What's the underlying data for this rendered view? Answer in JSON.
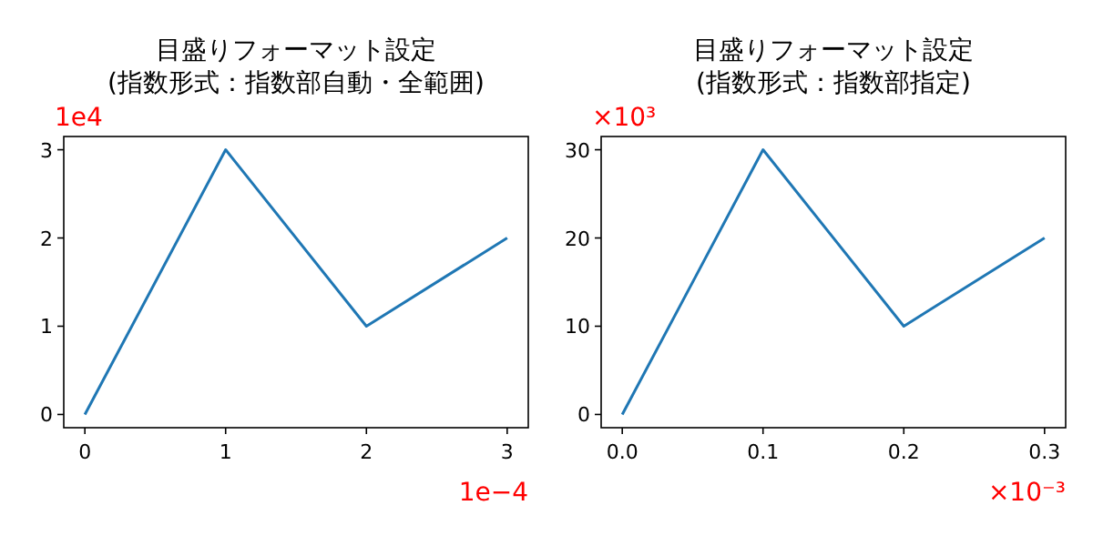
{
  "chart_data": [
    {
      "type": "line",
      "title": "目盛りフォーマット設定\n(指数形式：指数部自動・全範囲)",
      "x": [
        0,
        1,
        2,
        3
      ],
      "series": [
        {
          "color": "#1f77b4",
          "values": [
            0,
            3,
            1,
            2
          ]
        }
      ],
      "xlim": [
        -0.15,
        3.15
      ],
      "ylim": [
        -0.15,
        3.15
      ],
      "xticks": [
        0,
        1,
        2,
        3
      ],
      "yticks": [
        0,
        1,
        2,
        3
      ],
      "annotations": [
        "1e4",
        "1e−4"
      ]
    },
    {
      "type": "line",
      "title": "目盛りフォーマット設定\n(指数形式：指数部指定)",
      "x": [
        0,
        0.1,
        0.2,
        0.3
      ],
      "series": [
        {
          "color": "#1f77b4",
          "values": [
            0,
            30,
            10,
            20
          ]
        }
      ],
      "xlim": [
        -0.015,
        0.315
      ],
      "ylim": [
        -1.5,
        31.5
      ],
      "xticks": [
        {
          "value": 0,
          "label": "0.0"
        },
        {
          "value": 0.1,
          "label": "0.1"
        },
        {
          "value": 0.2,
          "label": "0.2"
        },
        {
          "value": 0.3,
          "label": "0.3"
        }
      ],
      "yticks": [
        0,
        10,
        20,
        30
      ],
      "annotations": [
        "×10³",
        "×10⁻³"
      ]
    }
  ]
}
